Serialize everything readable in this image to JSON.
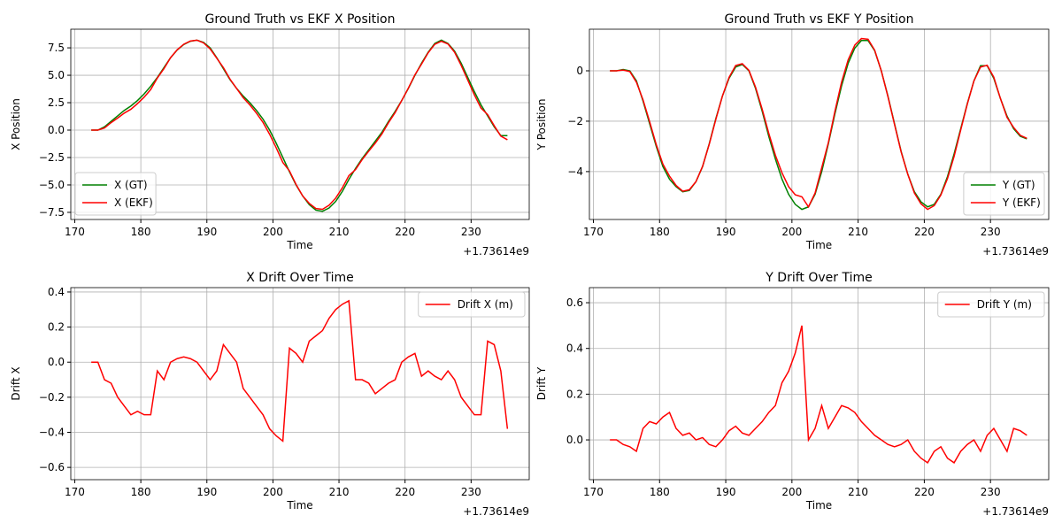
{
  "chart_data": [
    {
      "type": "line",
      "title": "Ground Truth vs EKF X Position",
      "xlabel": "Time",
      "ylabel": "X Position",
      "x_offset_label": "+1.73614e9",
      "x": [
        172.5,
        173.5,
        174.5,
        175.5,
        176.5,
        177.5,
        178.5,
        179.5,
        180.5,
        181.5,
        182.5,
        183.5,
        184.5,
        185.5,
        186.5,
        187.5,
        188.5,
        189.5,
        190.5,
        191.5,
        192.5,
        193.5,
        194.5,
        195.5,
        196.5,
        197.5,
        198.5,
        199.5,
        200.5,
        201.5,
        202.5,
        203.5,
        204.5,
        205.5,
        206.5,
        207.5,
        208.5,
        209.5,
        210.5,
        211.5,
        212.5,
        213.5,
        214.5,
        215.5,
        216.5,
        217.5,
        218.5,
        219.5,
        220.5,
        221.5,
        222.5,
        223.5,
        224.5,
        225.5,
        226.5,
        227.5,
        228.5,
        229.5,
        230.5,
        231.5,
        232.5,
        233.5,
        234.5,
        235.5
      ],
      "series": [
        {
          "name": "X (GT)",
          "color": "#008000",
          "values": [
            0,
            0,
            0.3,
            0.8,
            1.3,
            1.8,
            2.2,
            2.7,
            3.3,
            4.0,
            4.8,
            5.7,
            6.6,
            7.3,
            7.8,
            8.1,
            8.2,
            8.0,
            7.5,
            6.6,
            5.6,
            4.6,
            3.8,
            3.1,
            2.5,
            1.8,
            1.0,
            0.0,
            -1.2,
            -2.5,
            -3.8,
            -5.0,
            -6.0,
            -6.8,
            -7.3,
            -7.4,
            -7.1,
            -6.5,
            -5.6,
            -4.5,
            -3.5,
            -2.6,
            -1.8,
            -1.0,
            -0.2,
            0.8,
            1.7,
            2.7,
            3.8,
            5.0,
            6.1,
            7.1,
            7.9,
            8.2,
            7.9,
            7.2,
            6.1,
            4.8,
            3.5,
            2.3,
            1.3,
            0.3,
            -0.5,
            -0.5
          ]
        },
        {
          "name": "X (EKF)",
          "color": "#ff0000",
          "values": [
            0,
            0,
            0.2,
            0.68,
            1.1,
            1.55,
            1.9,
            2.42,
            3.0,
            3.7,
            4.75,
            5.6,
            6.6,
            7.32,
            7.83,
            8.12,
            8.2,
            7.95,
            7.4,
            6.55,
            5.7,
            4.65,
            3.8,
            2.95,
            2.3,
            1.55,
            0.7,
            -0.38,
            -1.62,
            -2.95,
            -3.72,
            -4.95,
            -6.0,
            -6.68,
            -7.15,
            -7.22,
            -6.85,
            -6.2,
            -5.27,
            -4.15,
            -3.6,
            -2.7,
            -1.92,
            -1.18,
            -0.35,
            0.68,
            1.6,
            2.7,
            3.83,
            5.05,
            6.02,
            7.05,
            7.82,
            8.1,
            7.85,
            7.1,
            5.9,
            4.55,
            3.2,
            2.0,
            1.42,
            0.4,
            -0.55,
            -0.88
          ]
        }
      ],
      "xlim": [
        169.4,
        238.8
      ],
      "xticks": [
        170,
        180,
        190,
        200,
        210,
        220,
        230
      ],
      "ylim": [
        -8.15,
        9.2
      ],
      "yticks": [
        {
          "value": -7.5,
          "label": "−7.5"
        },
        {
          "value": -5,
          "label": "−5.0"
        },
        {
          "value": -2.5,
          "label": "−2.5"
        },
        {
          "value": 0,
          "label": "0.0"
        },
        {
          "value": 2.5,
          "label": "2.5"
        },
        {
          "value": 5,
          "label": "5.0"
        },
        {
          "value": 7.5,
          "label": "7.5"
        }
      ],
      "grid": true,
      "legend": "lower left"
    },
    {
      "type": "line",
      "title": "Ground Truth vs EKF Y Position",
      "xlabel": "Time",
      "ylabel": "Y Position",
      "x_offset_label": "+1.73614e9",
      "x": [
        172.5,
        173.5,
        174.5,
        175.5,
        176.5,
        177.5,
        178.5,
        179.5,
        180.5,
        181.5,
        182.5,
        183.5,
        184.5,
        185.5,
        186.5,
        187.5,
        188.5,
        189.5,
        190.5,
        191.5,
        192.5,
        193.5,
        194.5,
        195.5,
        196.5,
        197.5,
        198.5,
        199.5,
        200.5,
        201.5,
        202.5,
        203.5,
        204.5,
        205.5,
        206.5,
        207.5,
        208.5,
        209.5,
        210.5,
        211.5,
        212.5,
        213.5,
        214.5,
        215.5,
        216.5,
        217.5,
        218.5,
        219.5,
        220.5,
        221.5,
        222.5,
        223.5,
        224.5,
        225.5,
        226.5,
        227.5,
        228.5,
        229.5,
        230.5,
        231.5,
        232.5,
        233.5,
        234.5,
        235.5
      ],
      "series": [
        {
          "name": "Y (GT)",
          "color": "#008000",
          "values": [
            0,
            0,
            0.05,
            0,
            -0.4,
            -1.2,
            -2.1,
            -3.0,
            -3.8,
            -4.3,
            -4.6,
            -4.8,
            -4.75,
            -4.4,
            -3.8,
            -2.9,
            -1.9,
            -1.0,
            -0.3,
            0.15,
            0.25,
            0.0,
            -0.7,
            -1.6,
            -2.6,
            -3.5,
            -4.3,
            -4.9,
            -5.3,
            -5.5,
            -5.4,
            -4.9,
            -4.0,
            -2.9,
            -1.7,
            -0.6,
            0.3,
            0.9,
            1.2,
            1.2,
            0.8,
            0.0,
            -1.0,
            -2.1,
            -3.2,
            -4.1,
            -4.8,
            -5.2,
            -5.4,
            -5.3,
            -4.9,
            -4.2,
            -3.3,
            -2.3,
            -1.3,
            -0.4,
            0.2,
            0.2,
            -0.3,
            -1.1,
            -1.8,
            -2.3,
            -2.6,
            -2.7
          ]
        },
        {
          "name": "Y (EKF)",
          "color": "#ff0000",
          "values": [
            0,
            0,
            0.03,
            -0.03,
            -0.45,
            -1.15,
            -2.02,
            -2.93,
            -3.7,
            -4.18,
            -4.55,
            -4.78,
            -4.72,
            -4.4,
            -3.79,
            -2.92,
            -1.93,
            -1.0,
            -0.26,
            0.21,
            0.28,
            0.02,
            -0.65,
            -1.52,
            -2.48,
            -3.35,
            -4.05,
            -4.6,
            -4.92,
            -5.0,
            -5.4,
            -4.85,
            -3.85,
            -2.85,
            -1.6,
            -0.45,
            0.44,
            1.02,
            1.28,
            1.25,
            0.82,
            0,
            -1.02,
            -2.13,
            -3.22,
            -4.1,
            -4.85,
            -5.28,
            -5.5,
            -5.35,
            -4.93,
            -4.28,
            -3.4,
            -2.35,
            -1.32,
            -0.4,
            0.15,
            0.22,
            -0.25,
            -1.1,
            -1.85,
            -2.25,
            -2.56,
            -2.68
          ]
        }
      ],
      "xlim": [
        169.4,
        238.8
      ],
      "xticks": [
        170,
        180,
        190,
        200,
        210,
        220,
        230
      ],
      "ylim": [
        -5.9,
        1.65
      ],
      "yticks": [
        {
          "value": -4,
          "label": "−4"
        },
        {
          "value": -2,
          "label": "−2"
        },
        0
      ],
      "grid": true,
      "legend": "lower right"
    },
    {
      "type": "line",
      "title": "X Drift Over Time",
      "xlabel": "Time",
      "ylabel": "Drift X",
      "x_offset_label": "+1.73614e9",
      "x": [
        172.5,
        173.5,
        174.5,
        175.5,
        176.5,
        177.5,
        178.5,
        179.5,
        180.5,
        181.5,
        182.5,
        183.5,
        184.5,
        185.5,
        186.5,
        187.5,
        188.5,
        189.5,
        190.5,
        191.5,
        192.5,
        193.5,
        194.5,
        195.5,
        196.5,
        197.5,
        198.5,
        199.5,
        200.5,
        201.5,
        202.5,
        203.5,
        204.5,
        205.5,
        206.5,
        207.5,
        208.5,
        209.5,
        210.5,
        211.5,
        212.5,
        213.5,
        214.5,
        215.5,
        216.5,
        217.5,
        218.5,
        219.5,
        220.5,
        221.5,
        222.5,
        223.5,
        224.5,
        225.5,
        226.5,
        227.5,
        228.5,
        229.5,
        230.5,
        231.5,
        232.5,
        233.5,
        234.5,
        235.5
      ],
      "series": [
        {
          "name": "Drift X (m)",
          "color": "#ff0000",
          "values": [
            0,
            0,
            -0.1,
            -0.12,
            -0.2,
            -0.25,
            -0.3,
            -0.28,
            -0.3,
            -0.3,
            -0.05,
            -0.1,
            0,
            0.02,
            0.03,
            0.02,
            0,
            -0.05,
            -0.1,
            -0.05,
            0.1,
            0.05,
            0,
            -0.15,
            -0.2,
            -0.25,
            -0.3,
            -0.38,
            -0.42,
            -0.45,
            0.08,
            0.05,
            0,
            0.12,
            0.15,
            0.18,
            0.25,
            0.3,
            0.33,
            0.35,
            -0.1,
            -0.1,
            -0.12,
            -0.18,
            -0.15,
            -0.12,
            -0.1,
            0,
            0.03,
            0.05,
            -0.08,
            -0.05,
            -0.08,
            -0.1,
            -0.05,
            -0.1,
            -0.2,
            -0.25,
            -0.3,
            -0.3,
            0.12,
            0.1,
            -0.05,
            -0.38
          ]
        }
      ],
      "xlim": [
        169.4,
        238.8
      ],
      "xticks": [
        170,
        180,
        190,
        200,
        210,
        220,
        230
      ],
      "ylim": [
        -0.67,
        0.425
      ],
      "yticks": [
        {
          "value": -0.6,
          "label": "−0.6"
        },
        {
          "value": -0.4,
          "label": "−0.4"
        },
        {
          "value": -0.2,
          "label": "−0.2"
        },
        {
          "value": 0,
          "label": "0.0"
        },
        0.2,
        0.4
      ],
      "grid": true,
      "legend": "upper right"
    },
    {
      "type": "line",
      "title": "Y Drift Over Time",
      "xlabel": "Time",
      "ylabel": "Drift Y",
      "x_offset_label": "+1.73614e9",
      "x": [
        172.5,
        173.5,
        174.5,
        175.5,
        176.5,
        177.5,
        178.5,
        179.5,
        180.5,
        181.5,
        182.5,
        183.5,
        184.5,
        185.5,
        186.5,
        187.5,
        188.5,
        189.5,
        190.5,
        191.5,
        192.5,
        193.5,
        194.5,
        195.5,
        196.5,
        197.5,
        198.5,
        199.5,
        200.5,
        201.5,
        202.5,
        203.5,
        204.5,
        205.5,
        206.5,
        207.5,
        208.5,
        209.5,
        210.5,
        211.5,
        212.5,
        213.5,
        214.5,
        215.5,
        216.5,
        217.5,
        218.5,
        219.5,
        220.5,
        221.5,
        222.5,
        223.5,
        224.5,
        225.5,
        226.5,
        227.5,
        228.5,
        229.5,
        230.5,
        231.5,
        232.5,
        233.5,
        234.5,
        235.5
      ],
      "series": [
        {
          "name": "Drift Y (m)",
          "color": "#ff0000",
          "values": [
            0,
            0,
            -0.02,
            -0.03,
            -0.05,
            0.05,
            0.08,
            0.07,
            0.1,
            0.12,
            0.05,
            0.02,
            0.03,
            0,
            0.01,
            -0.02,
            -0.03,
            0,
            0.04,
            0.06,
            0.03,
            0.02,
            0.05,
            0.08,
            0.12,
            0.15,
            0.25,
            0.3,
            0.38,
            0.5,
            0,
            0.05,
            0.15,
            0.05,
            0.1,
            0.15,
            0.14,
            0.12,
            0.08,
            0.05,
            0.02,
            0,
            -0.02,
            -0.03,
            -0.02,
            0,
            -0.05,
            -0.08,
            -0.1,
            -0.05,
            -0.03,
            -0.08,
            -0.1,
            -0.05,
            -0.02,
            0,
            -0.05,
            0.02,
            0.05,
            0,
            -0.05,
            0.05,
            0.04,
            0.02
          ]
        }
      ],
      "xlim": [
        169.4,
        238.8
      ],
      "xticks": [
        170,
        180,
        190,
        200,
        210,
        220,
        230
      ],
      "ylim": [
        -0.174,
        0.666
      ],
      "yticks": [
        {
          "value": 0,
          "label": "0.0"
        },
        0.2,
        0.4,
        0.6
      ],
      "grid": true,
      "legend": "upper right"
    }
  ]
}
